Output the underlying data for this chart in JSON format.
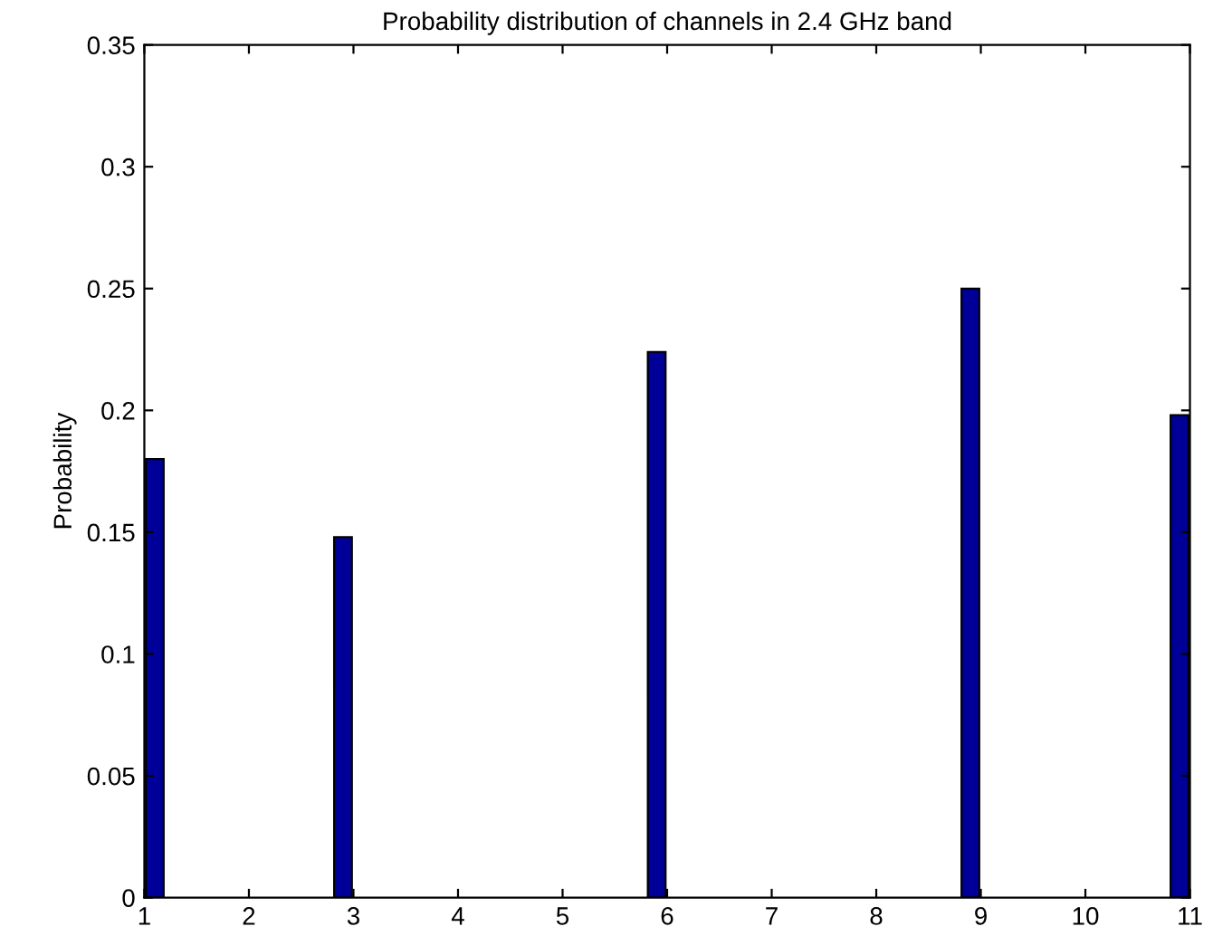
{
  "chart_data": {
    "type": "bar",
    "title": "Probability distribution of channels in 2.4 GHz band",
    "ylabel": "Probability",
    "x": [
      1.1,
      2.9,
      5.9,
      8.9,
      10.9
    ],
    "values": [
      0.18,
      0.148,
      0.224,
      0.25,
      0.198
    ],
    "color": "#000099",
    "xlim": [
      1,
      11
    ],
    "xticks": [
      1,
      2,
      3,
      4,
      5,
      6,
      7,
      8,
      9,
      10,
      11
    ],
    "ylim": [
      0,
      0.35
    ],
    "yticks": [
      0,
      0.05,
      0.1,
      0.15,
      0.2,
      0.25,
      0.3,
      0.35
    ],
    "grid": false,
    "legend": false
  }
}
